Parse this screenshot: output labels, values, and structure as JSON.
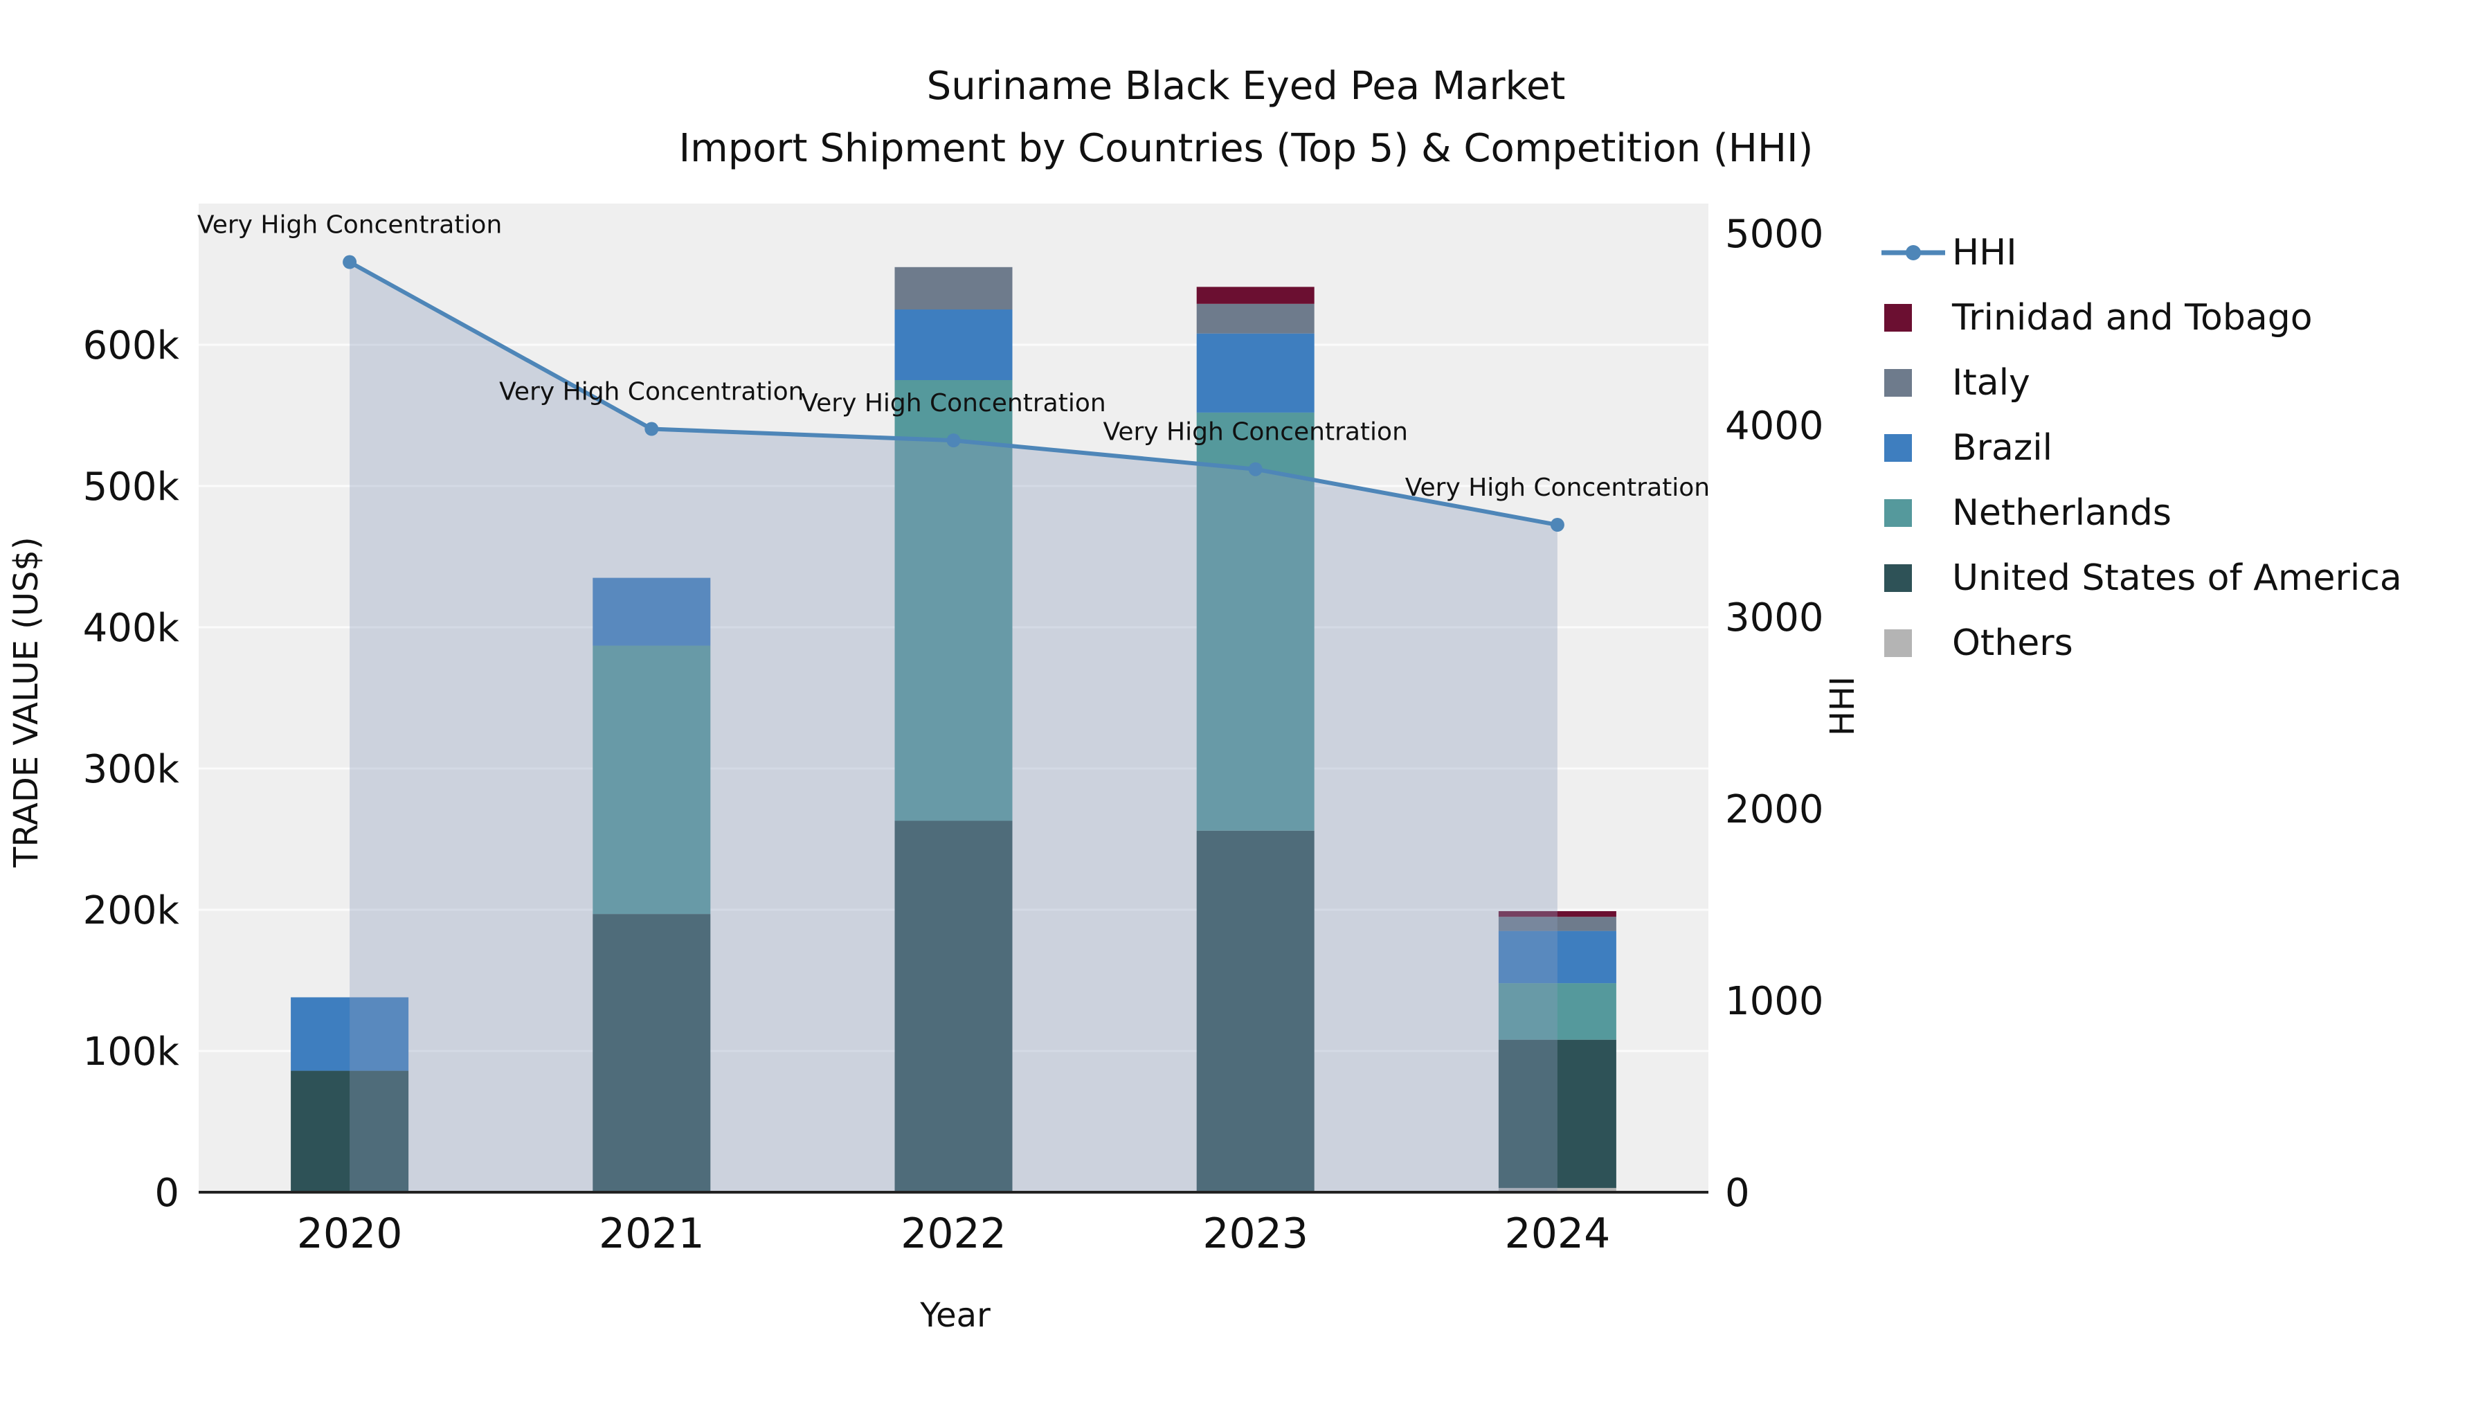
{
  "title": {
    "line1": "Suriname Black Eyed Pea Market",
    "line2": "Import Shipment by Countries (Top 5) & Competition (HHI)"
  },
  "axes": {
    "x_title": "Year",
    "y_left_title": "TRADE VALUE (US$)",
    "y_right_title": "HHI"
  },
  "chart_data": {
    "type": "stacked-bar+line",
    "title": "Suriname Black Eyed Pea Market — Import Shipment by Countries (Top 5) & Competition (HHI)",
    "categories": [
      "2020",
      "2021",
      "2022",
      "2023",
      "2024"
    ],
    "plot_bg": "#efefef",
    "grid_color": "#fbfbfb",
    "axis_line_color": "#222222",
    "series": [
      {
        "name": "Others",
        "color": "#b4b4b4",
        "values": [
          0,
          0,
          0,
          0,
          3000
        ]
      },
      {
        "name": "United States of America",
        "color": "#2e5257",
        "values": [
          86000,
          197000,
          263000,
          256000,
          105000
        ]
      },
      {
        "name": "Netherlands",
        "color": "#55999c",
        "values": [
          0,
          190000,
          312000,
          296000,
          40000
        ]
      },
      {
        "name": "Brazil",
        "color": "#3e7ebf",
        "values": [
          52000,
          48000,
          50000,
          56000,
          37000
        ]
      },
      {
        "name": "Italy",
        "color": "#6e7b8c",
        "values": [
          0,
          0,
          30000,
          21000,
          10000
        ]
      },
      {
        "name": "Trinidad and Tobago",
        "color": "#6b0f31",
        "values": [
          0,
          0,
          0,
          12000,
          4000
        ]
      }
    ],
    "line_series": {
      "name": "HHI",
      "color": "#4e86b8",
      "fill": "rgba(139,159,190,0.35)",
      "values": [
        4850,
        3980,
        3920,
        3770,
        3480
      ],
      "annotations": [
        "Very High Concentration",
        "Very High Concentration",
        "Very High Concentration",
        "Very High Concentration",
        "Very High Concentration"
      ]
    },
    "y_left": {
      "label": "TRADE VALUE (US$)",
      "max": 700000,
      "tick_values": [
        0,
        100000,
        200000,
        300000,
        400000,
        500000,
        600000
      ],
      "tick_labels": [
        "0",
        "100k",
        "200k",
        "300k",
        "400k",
        "500k",
        "600k"
      ]
    },
    "y_right": {
      "label": "HHI",
      "max": 5000,
      "tick_values": [
        0,
        1000,
        2000,
        3000,
        4000,
        5000
      ],
      "tick_labels": [
        "0",
        "1000",
        "2000",
        "3000",
        "4000",
        "5000"
      ]
    },
    "xlabel": "Year",
    "legend_position": "right"
  },
  "legend": {
    "items": [
      {
        "label": "HHI",
        "type": "line",
        "color": "#4e86b8"
      },
      {
        "label": "Trinidad and Tobago",
        "type": "swatch",
        "color": "#6b0f31"
      },
      {
        "label": "Italy",
        "type": "swatch",
        "color": "#6e7b8c"
      },
      {
        "label": "Brazil",
        "type": "swatch",
        "color": "#3e7ebf"
      },
      {
        "label": "Netherlands",
        "type": "swatch",
        "color": "#55999c"
      },
      {
        "label": "United States of America",
        "type": "swatch",
        "color": "#2e5257"
      },
      {
        "label": "Others",
        "type": "swatch",
        "color": "#b4b4b4"
      }
    ]
  }
}
